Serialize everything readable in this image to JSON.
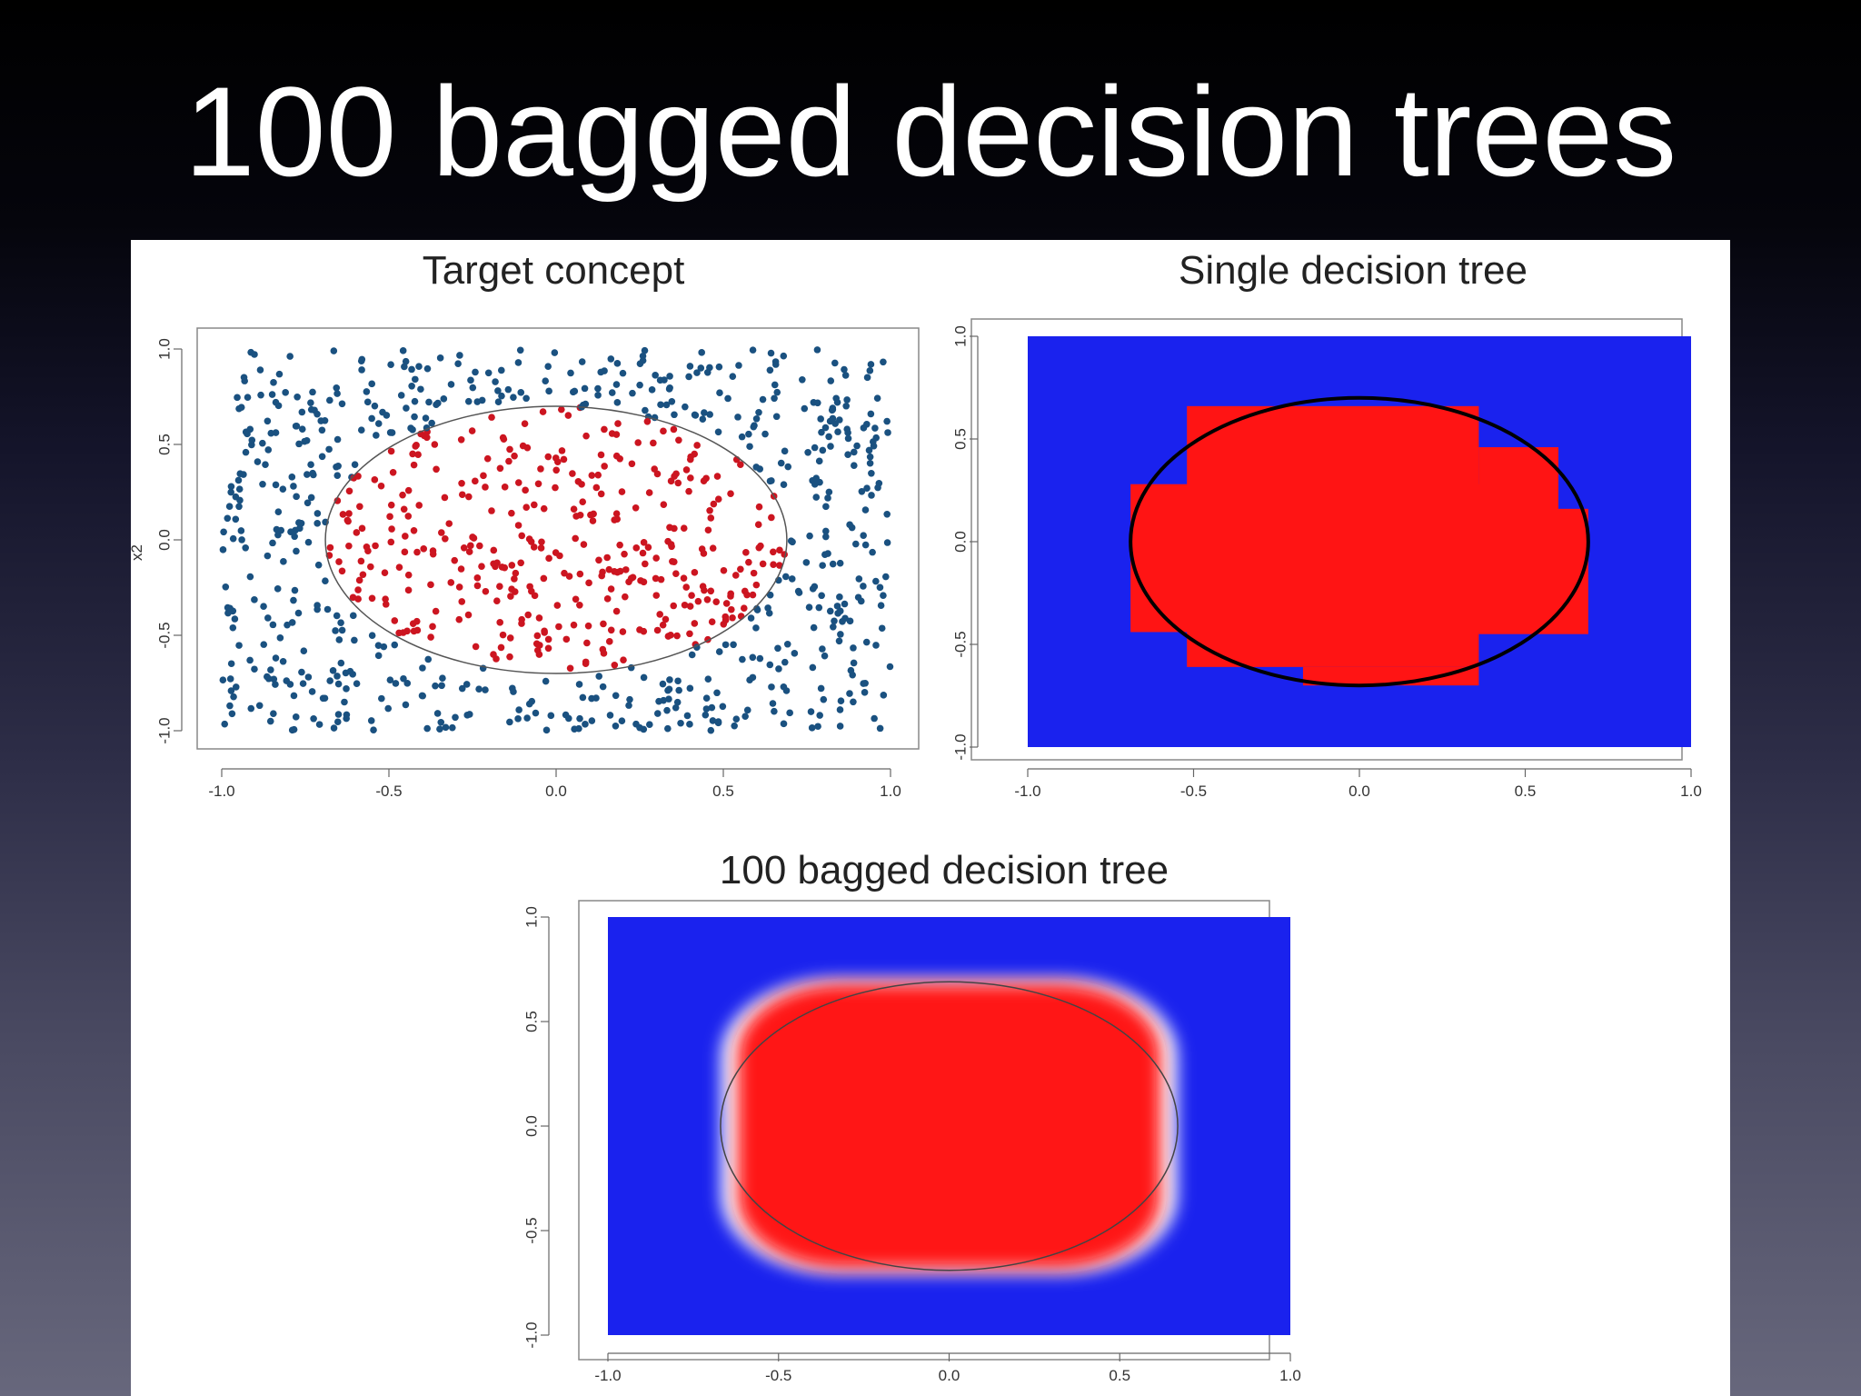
{
  "slide": {
    "title": "100 bagged decision trees"
  },
  "colors": {
    "point_outside": "#1a5180",
    "point_inside": "#cc1520",
    "region_blue": "#1a22ee",
    "region_red": "#ff1414",
    "boundary": "#000000"
  },
  "chart_data": [
    {
      "type": "scatter",
      "title": "Target concept",
      "xlabel": "",
      "ylabel": "x2",
      "xlim": [
        -1.0,
        1.0
      ],
      "ylim": [
        -1.0,
        1.0
      ],
      "xticks": [
        "-1.0",
        "-0.5",
        "0.0",
        "0.5",
        "1.0"
      ],
      "yticks": [
        "-1.0",
        "-0.5",
        "0.0",
        "0.5",
        "1.0"
      ],
      "boundary": {
        "shape": "ellipse",
        "center": [
          0.0,
          0.0
        ],
        "rx": 0.69,
        "ry": 0.7
      },
      "n_points": 1000,
      "classes": [
        {
          "label": "outside",
          "color": "#1a5180"
        },
        {
          "label": "inside",
          "color": "#cc1520"
        }
      ]
    },
    {
      "type": "heatmap",
      "title": "Single decision tree",
      "xlabel": "",
      "ylabel": "",
      "xlim": [
        -1.0,
        1.0
      ],
      "ylim": [
        -1.0,
        1.0
      ],
      "xticks": [
        "-1.0",
        "-0.5",
        "0.0",
        "0.5",
        "1.0"
      ],
      "yticks": [
        "-1.0",
        "-0.5",
        "0.0",
        "0.5",
        "1.0"
      ],
      "boundary": {
        "shape": "ellipse",
        "center": [
          0.0,
          0.0
        ],
        "rx": 0.69,
        "ry": 0.7
      },
      "red_region_rects": [
        [
          -0.52,
          -0.61,
          0.36,
          0.66
        ],
        [
          -0.69,
          -0.44,
          0.6,
          0.28
        ],
        [
          0.36,
          -0.45,
          0.6,
          0.46
        ],
        [
          0.6,
          -0.45,
          0.69,
          0.16
        ],
        [
          -0.17,
          -0.7,
          0.36,
          -0.61
        ]
      ]
    },
    {
      "type": "heatmap",
      "title": "100 bagged decision tree",
      "xlabel": "",
      "ylabel": "",
      "xlim": [
        -1.0,
        1.0
      ],
      "ylim": [
        -1.0,
        1.0
      ],
      "xticks": [
        "-1.0",
        "-0.5",
        "0.0",
        "0.5",
        "1.0"
      ],
      "yticks": [
        "-1.0",
        "-0.5",
        "0.0",
        "0.5",
        "1.0"
      ],
      "boundary": {
        "shape": "ellipse",
        "center": [
          0.0,
          0.0
        ],
        "rx": 0.67,
        "ry": 0.69
      },
      "red_region": {
        "shape": "rounded-ellipse",
        "center": [
          0.0,
          0.0
        ],
        "rx": 0.62,
        "ry": 0.68
      }
    }
  ]
}
